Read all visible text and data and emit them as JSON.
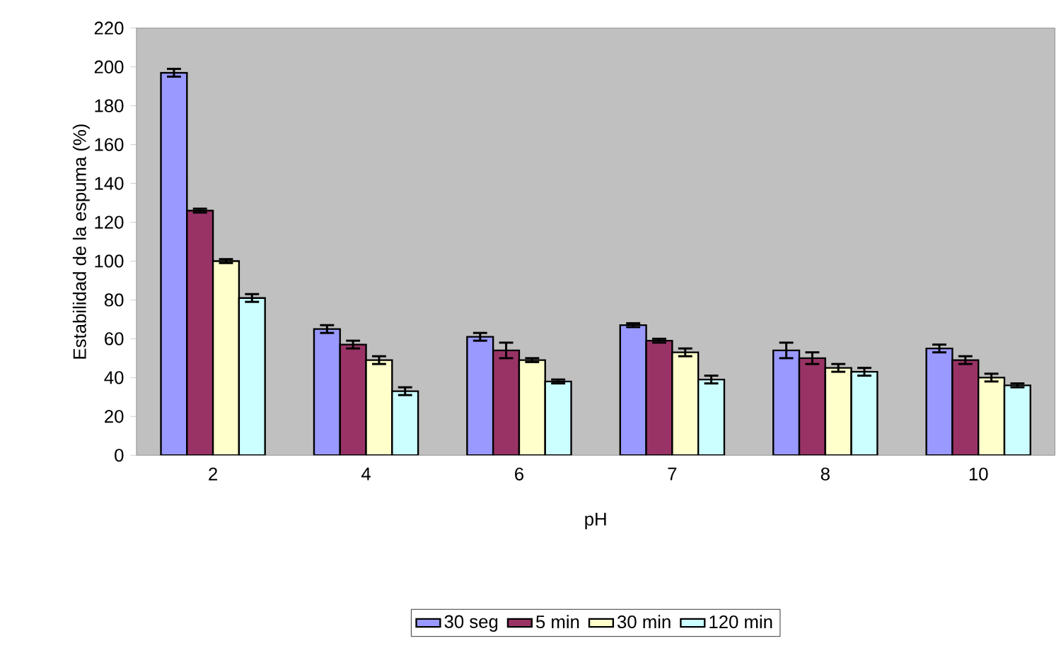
{
  "chart_data": {
    "type": "bar",
    "xlabel": "pH",
    "ylabel": "Estabilidad de la espuma (%)",
    "categories": [
      "2",
      "4",
      "6",
      "7",
      "8",
      "10"
    ],
    "series": [
      {
        "name": "30 seg",
        "color": "#9999ff",
        "values": [
          197,
          65,
          61,
          67,
          54,
          55
        ],
        "errors": [
          2,
          2,
          2,
          1,
          4,
          2
        ]
      },
      {
        "name": "5 min",
        "color": "#993366",
        "values": [
          126,
          57,
          54,
          59,
          50,
          49
        ],
        "errors": [
          1,
          2,
          4,
          1,
          3,
          2
        ]
      },
      {
        "name": "30 min",
        "color": "#ffffcc",
        "values": [
          100,
          49,
          49,
          53,
          45,
          40
        ],
        "errors": [
          1,
          2,
          1,
          2,
          2,
          2
        ]
      },
      {
        "name": "120 min",
        "color": "#ccffff",
        "values": [
          81,
          33,
          38,
          39,
          43,
          36
        ],
        "errors": [
          2,
          2,
          1,
          2,
          2,
          1
        ]
      }
    ],
    "ylim": [
      0,
      220
    ],
    "yticks": [
      0,
      20,
      40,
      60,
      80,
      100,
      120,
      140,
      160,
      180,
      200,
      220
    ],
    "grid": false,
    "legend": "bottom"
  }
}
